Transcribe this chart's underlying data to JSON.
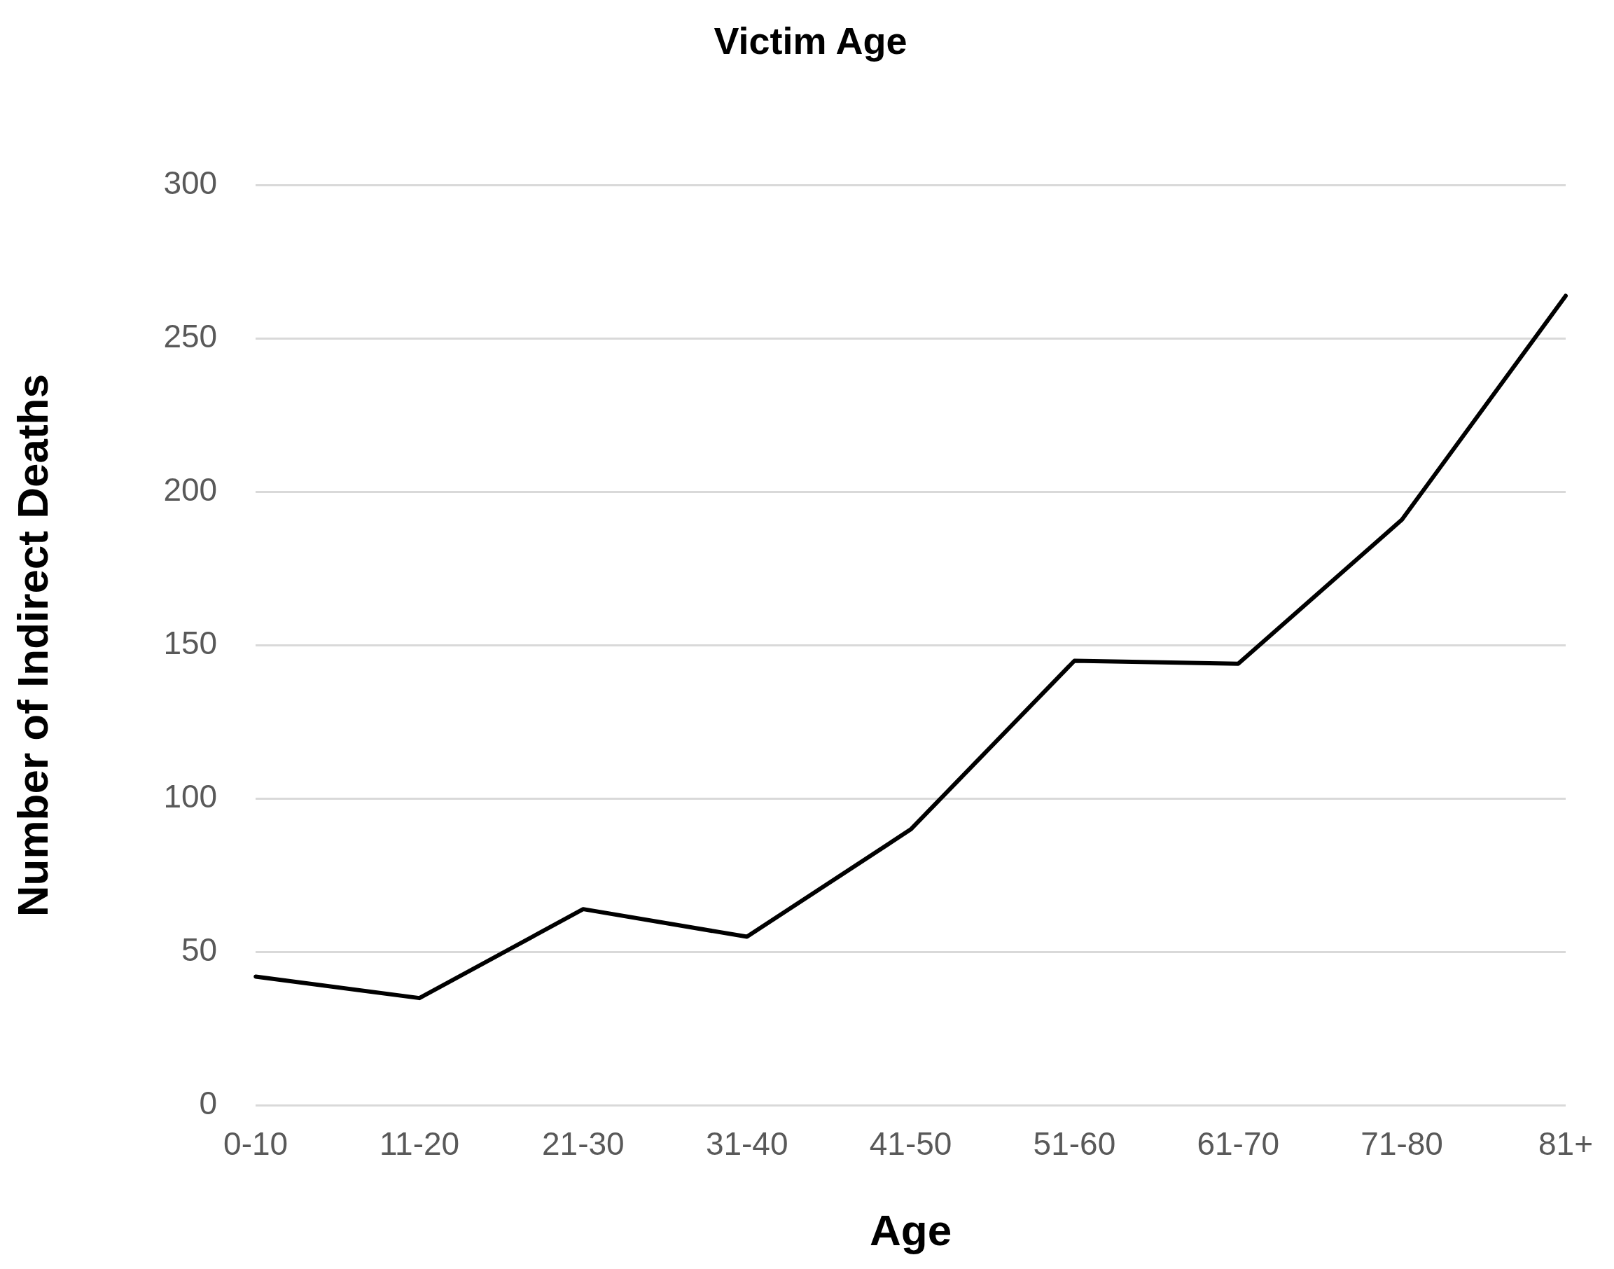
{
  "chart_data": {
    "type": "line",
    "title": "Victim Age",
    "xlabel": "Age",
    "ylabel": "Number of Indirect Deaths",
    "categories": [
      "0-10",
      "11-20",
      "21-30",
      "31-40",
      "41-50",
      "51-60",
      "61-70",
      "71-80",
      "81+"
    ],
    "series": [
      {
        "color": "#000000",
        "values": [
          42,
          35,
          64,
          55,
          90,
          145,
          144,
          191,
          264
        ]
      }
    ],
    "ylim": [
      0,
      300
    ],
    "yticks": [
      0,
      50,
      100,
      150,
      200,
      250,
      300
    ],
    "grid": "y",
    "legend": false,
    "marker": "none",
    "line_style": "solid"
  }
}
